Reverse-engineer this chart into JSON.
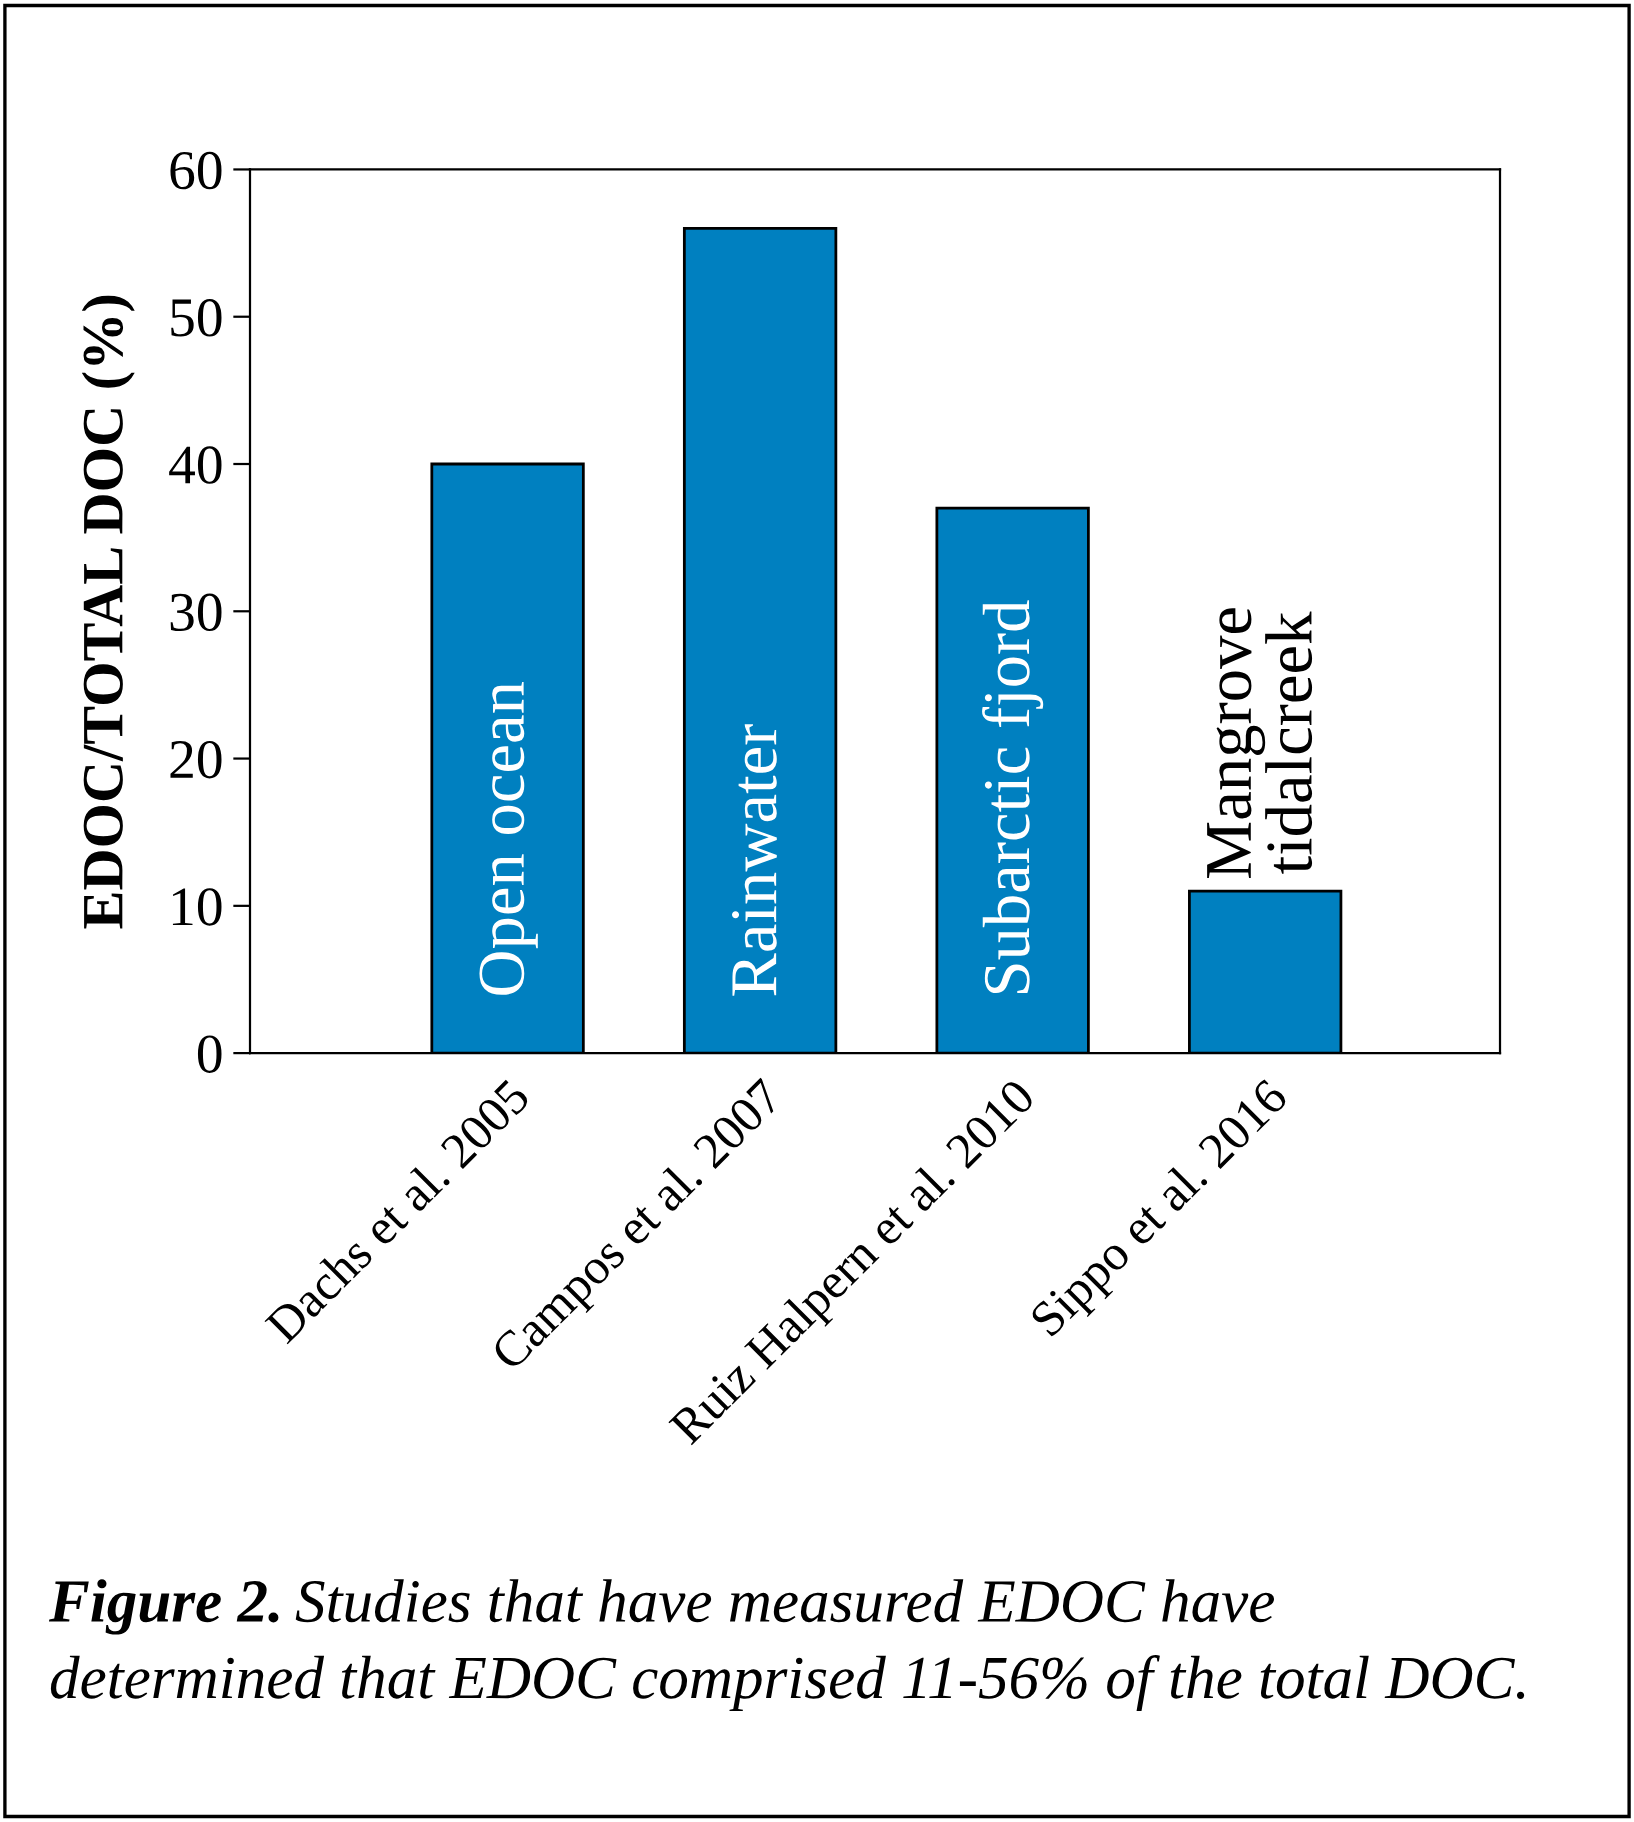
{
  "chart_data": {
    "type": "bar",
    "ylabel": "EDOC/TOTAL DOC (%)",
    "categories": [
      "Dachs et al. 2005",
      "Campos et al. 2007",
      "Ruiz Halpern et al. 2010",
      "Sippo et al. 2016"
    ],
    "values": [
      40,
      56,
      37,
      11
    ],
    "color": "#0080c0",
    "ylim": [
      0,
      60
    ],
    "yticks": [
      0,
      10,
      20,
      30,
      40,
      50,
      60
    ],
    "grid": false,
    "annotations": [
      "Open ocean",
      "Rainwater",
      "Subarctic fjord",
      "Mangrove\ntidalcreek",
      "Figure 2.",
      "Studies that have measured EDOC have",
      "determined that EDOC comprised 11-56% of the total DOC."
    ]
  }
}
